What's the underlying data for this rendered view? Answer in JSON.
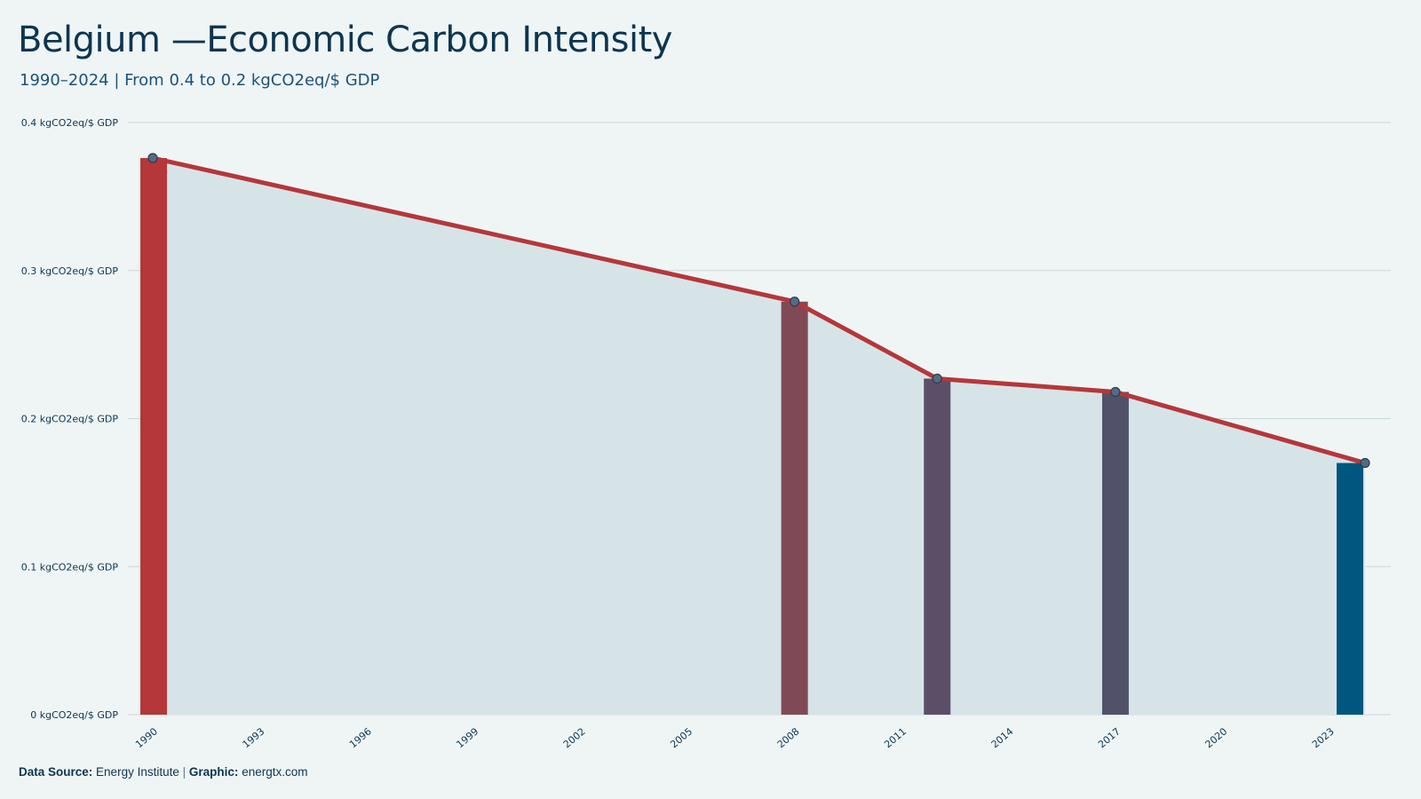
{
  "header": {
    "title": "Belgium —Economic Carbon Intensity",
    "subtitle": "1990–2024 | From 0.4 to 0.2 kgCO2eq/$ GDP"
  },
  "footer": {
    "source_label": "Data Source:",
    "source_value": "Energy Institute",
    "separator": "|",
    "graphic_label": "Graphic:",
    "graphic_value": "energtx.com"
  },
  "colors": {
    "line": "#b5373a",
    "area": "#d6e4e8",
    "grid": "#c9d6da",
    "marker_stroke": "#2d3b4f",
    "marker_fill": "#536b84",
    "axis_text": "#0d3550"
  },
  "chart_data": {
    "type": "line",
    "x_range": [
      1990,
      2024
    ],
    "ylim": [
      0,
      0.4
    ],
    "y_ticks": [
      0,
      0.1,
      0.2,
      0.3,
      0.4
    ],
    "y_tick_labels": [
      "0 kgCO2eq/$ GDP",
      "0.1 kgCO2eq/$ GDP",
      "0.2 kgCO2eq/$ GDP",
      "0.3 kgCO2eq/$ GDP",
      "0.4 kgCO2eq/$ GDP"
    ],
    "x_ticks": [
      1990,
      1993,
      1996,
      1999,
      2002,
      2005,
      2008,
      2011,
      2014,
      2017,
      2020,
      2023
    ],
    "x_tick_labels": [
      "1990",
      "1993",
      "1996",
      "1999",
      "2002",
      "2005",
      "2008",
      "2011",
      "2014",
      "2017",
      "2020",
      "2023"
    ],
    "grid": true,
    "series": [
      {
        "x": [
          1990,
          2008,
          2012,
          2017,
          2024
        ],
        "y": [
          0.376,
          0.279,
          0.227,
          0.218,
          0.17
        ]
      }
    ],
    "highlight_bars": [
      {
        "x": 1990,
        "y": 0.376,
        "color": "#b5373a"
      },
      {
        "x": 2008,
        "y": 0.279,
        "color": "#7f4a55"
      },
      {
        "x": 2012,
        "y": 0.227,
        "color": "#5b4f67"
      },
      {
        "x": 2017,
        "y": 0.218,
        "color": "#51516a"
      },
      {
        "x": 2024,
        "y": 0.17,
        "color": "#00567e"
      }
    ]
  }
}
